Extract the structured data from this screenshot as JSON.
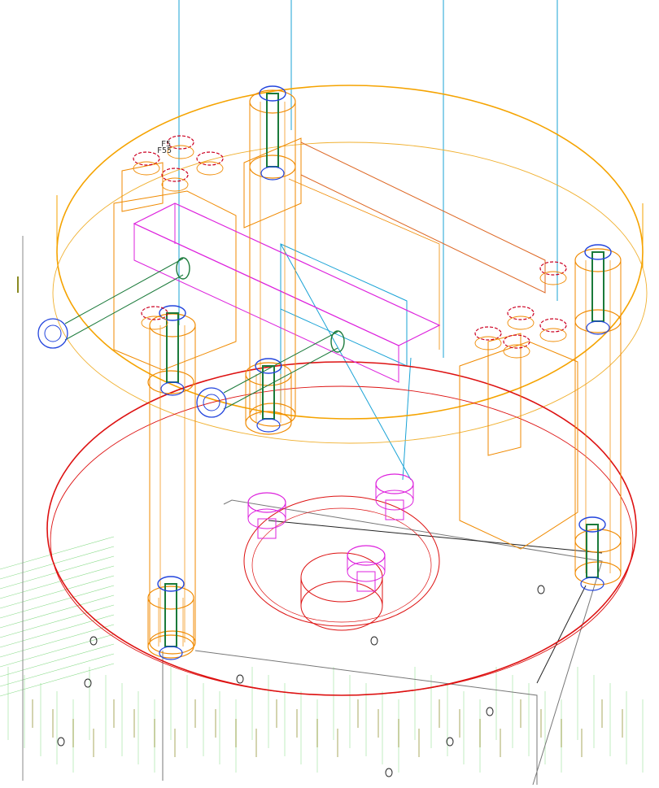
{
  "view": {
    "title": "",
    "note_labels": [
      "F55",
      "F5"
    ]
  },
  "colors": {
    "background": "#ffffff",
    "top_plate": "#f5a300",
    "top_plate_inner": "#f0b030",
    "bottom_plate": "#dd1111",
    "posts": "#f08a00",
    "bolts_dark": "#1a7a3a",
    "bolt_heads": "#2244dd",
    "nuts": "#cc0022",
    "magenta_parts": "#dd22dd",
    "cyan_lines": "#1aa3d6",
    "base_frame": "#777777",
    "grid_green": "#55cc55",
    "grid_olive": "#8a8a22"
  },
  "parts": {
    "top_plate": "upper-circular-plate",
    "bottom_plate": "lower-circular-plate",
    "posts": "vertical-support-posts",
    "slide_rail": "magenta-slide-rail",
    "base": "grey-base-frame"
  }
}
